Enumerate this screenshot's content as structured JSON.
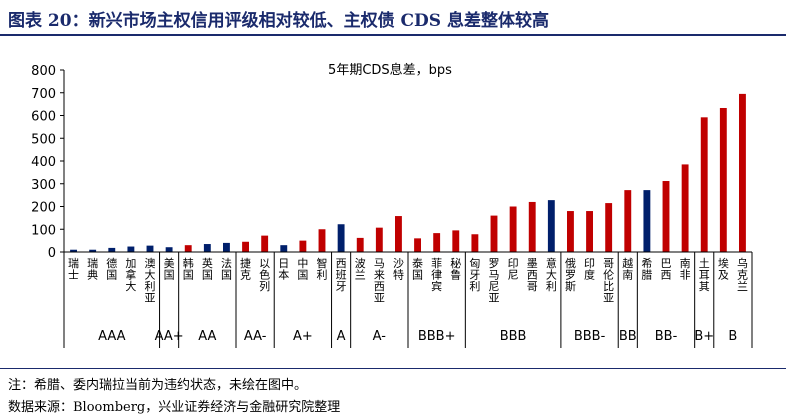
{
  "title": "图表 20：新兴市场主权信用评级相对较低、主权债 CDS 息差整体较高",
  "note": "注：希腊、委内瑞拉当前为违约状态，未绘在图中。",
  "source": "数据来源：Bloomberg，兴业证券经济与金融研究院整理",
  "colors": {
    "red": "#c00000",
    "navy": "#001f6b",
    "title": "#1a2a6c"
  },
  "chart_data": {
    "type": "bar",
    "title": "5年期CDS息差，bps",
    "ylim": [
      0,
      800
    ],
    "yticks": [
      0,
      100,
      200,
      300,
      400,
      500,
      600,
      700,
      800
    ],
    "grid": false,
    "categories": [
      "瑞士",
      "瑞典",
      "德国",
      "加拿大",
      "澳大利亚",
      "美国",
      "韩国",
      "英国",
      "法国",
      "捷克",
      "以色列",
      "日本",
      "中国",
      "智利",
      "西班牙",
      "波兰",
      "马来西亚",
      "沙特",
      "泰国",
      "菲律宾",
      "秘鲁",
      "匈牙利",
      "罗马尼亚",
      "印尼",
      "墨西哥",
      "意大利",
      "俄罗斯",
      "印度",
      "哥伦比亚",
      "越南",
      "希腊",
      "巴西",
      "南非",
      "土耳其",
      "埃及",
      "乌克兰"
    ],
    "values": [
      10,
      10,
      18,
      24,
      28,
      21,
      30,
      35,
      40,
      45,
      72,
      30,
      50,
      100,
      122,
      62,
      107,
      158,
      60,
      83,
      95,
      78,
      160,
      200,
      220,
      228,
      180,
      180,
      215,
      272,
      272,
      312,
      385,
      592,
      633,
      695
    ],
    "highlight": [
      "navy",
      "navy",
      "navy",
      "navy",
      "navy",
      "navy",
      "red",
      "navy",
      "navy",
      "red",
      "red",
      "navy",
      "red",
      "red",
      "navy",
      "red",
      "red",
      "red",
      "red",
      "red",
      "red",
      "red",
      "red",
      "red",
      "red",
      "navy",
      "red",
      "red",
      "red",
      "red",
      "navy",
      "red",
      "red",
      "red",
      "red",
      "red"
    ],
    "rating_groups": [
      {
        "label": "AAA",
        "start": 0,
        "end": 4
      },
      {
        "label": "AA+",
        "start": 5,
        "end": 5
      },
      {
        "label": "AA",
        "start": 6,
        "end": 8
      },
      {
        "label": "AA-",
        "start": 9,
        "end": 10
      },
      {
        "label": "A+",
        "start": 11,
        "end": 13
      },
      {
        "label": "A",
        "start": 14,
        "end": 14
      },
      {
        "label": "A-",
        "start": 15,
        "end": 17
      },
      {
        "label": "BBB+",
        "start": 18,
        "end": 20
      },
      {
        "label": "BBB",
        "start": 21,
        "end": 25
      },
      {
        "label": "BBB-",
        "start": 26,
        "end": 28
      },
      {
        "label": "BB",
        "start": 29,
        "end": 29
      },
      {
        "label": "BB-",
        "start": 30,
        "end": 32
      },
      {
        "label": "B+",
        "start": 33,
        "end": 33
      },
      {
        "label": "B",
        "start": 34,
        "end": 35
      }
    ]
  }
}
